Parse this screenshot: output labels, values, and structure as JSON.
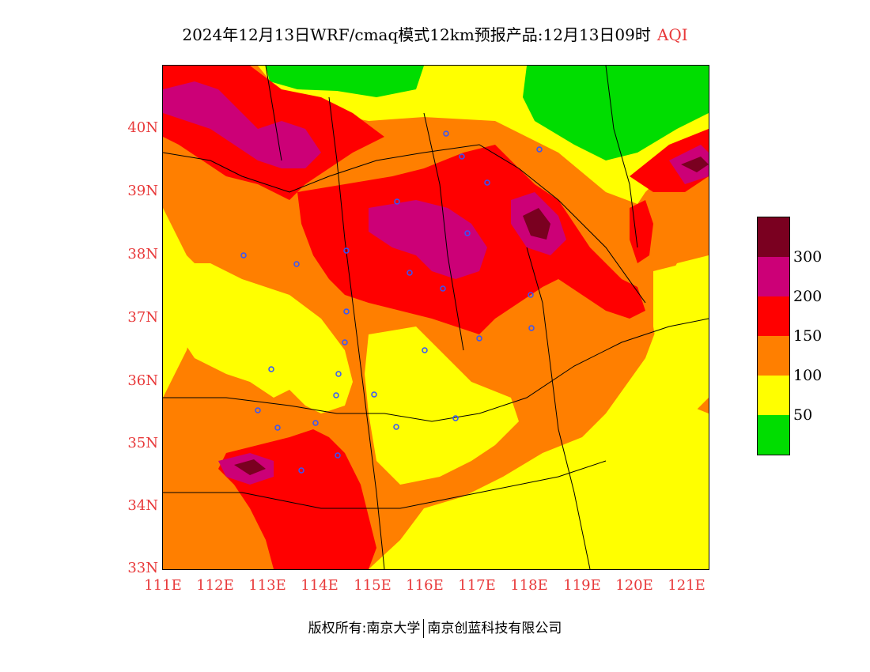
{
  "title": {
    "main": "2024年12月13日WRF/cmaq模式12km预报产品:12月13日09时",
    "variable": "AQI"
  },
  "axes": {
    "lat_labels": [
      "40N",
      "39N",
      "38N",
      "37N",
      "36N",
      "35N",
      "34N",
      "33N"
    ],
    "lon_labels": [
      "111E",
      "112E",
      "113E",
      "114E",
      "115E",
      "116E",
      "117E",
      "118E",
      "119E",
      "120E",
      "121E"
    ],
    "lat_range": [
      33,
      41
    ],
    "lon_range": [
      111,
      121.4
    ]
  },
  "legend": {
    "ticks": [
      "300",
      "200",
      "150",
      "100",
      "50"
    ],
    "colors": [
      "#7a0020",
      "#cc0077",
      "#ff0000",
      "#ff7f00",
      "#ffff00",
      "#00dd00"
    ],
    "levels": [
      0,
      50,
      100,
      150,
      200,
      300,
      500
    ]
  },
  "colors": {
    "label_red": "#e8393a",
    "good": "#00dd00",
    "moderate": "#ffff00",
    "sensitive": "#ff7f00",
    "unhealthy": "#ff0000",
    "very_unhealthy": "#cc0077",
    "hazardous": "#7a0020"
  },
  "footer": {
    "left": "版权所有:南京大学",
    "right": "南京创蓝科技有限公司"
  }
}
